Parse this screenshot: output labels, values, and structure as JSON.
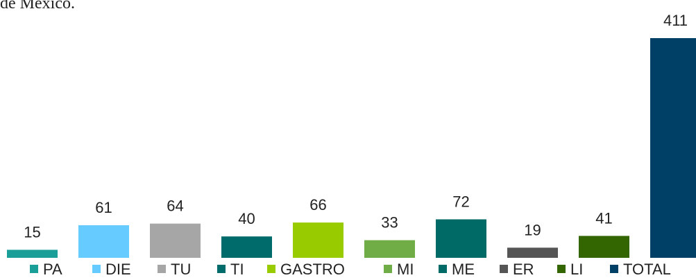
{
  "chart_data": {
    "type": "bar",
    "title": "de México.",
    "categories": [
      "PA",
      "DIE",
      "TU",
      "TI",
      "GASTRO",
      "MI",
      "ME",
      "ER",
      "LI",
      "TOTAL"
    ],
    "values": [
      15,
      61,
      64,
      40,
      66,
      33,
      72,
      19,
      41,
      411
    ],
    "colors": [
      "#1a9e98",
      "#66ccff",
      "#a6a6a6",
      "#006b6b",
      "#99cc00",
      "#70ad47",
      "#006b66",
      "#555555",
      "#336600",
      "#003f66"
    ],
    "legend": "bottom"
  }
}
